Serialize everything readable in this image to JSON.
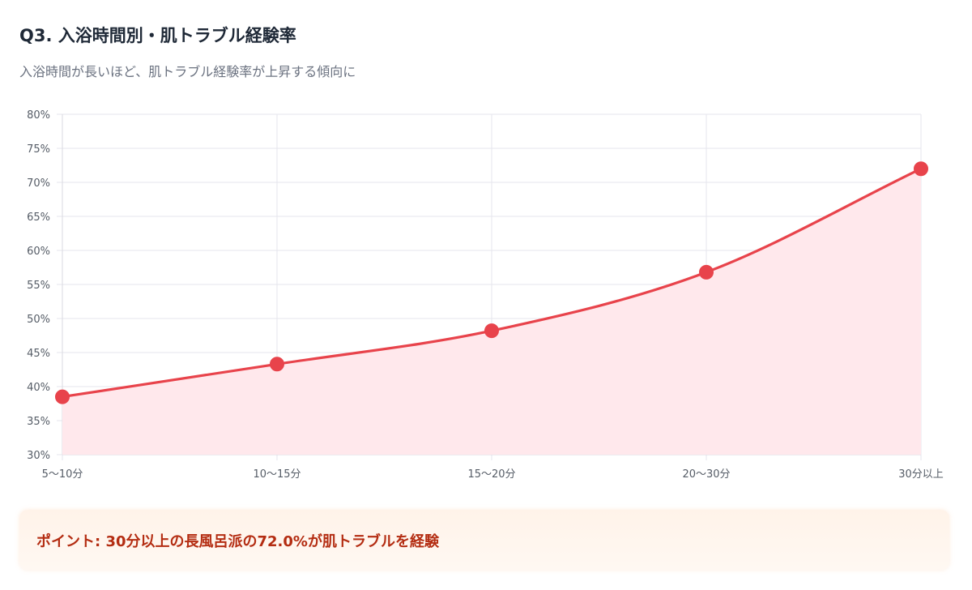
{
  "header": {
    "title": "Q3. 入浴時間別・肌トラブル経験率",
    "subtitle": "入浴時間が長いほど、肌トラブル経験率が上昇する傾向に"
  },
  "chart_data": {
    "type": "line",
    "title": "Q3. 入浴時間別・肌トラブル経験率",
    "subtitle": "入浴時間が長いほど、肌トラブル経験率が上昇する傾向に",
    "categories": [
      "5〜10分",
      "10〜15分",
      "15〜20分",
      "20〜30分",
      "30分以上"
    ],
    "values": [
      38.5,
      43.3,
      48.2,
      56.8,
      72.0
    ],
    "ylim": [
      30,
      80
    ],
    "yticks": [
      "30%",
      "35%",
      "40%",
      "45%",
      "50%",
      "55%",
      "60%",
      "65%",
      "70%",
      "75%",
      "80%"
    ],
    "fill_area": true,
    "smooth": true,
    "grid": true,
    "legend": "none",
    "xlabel": "",
    "ylabel": "",
    "line_color": "#e8434b",
    "fill_color": "#ffe8ec"
  },
  "callout": {
    "text": "ポイント: 30分以上の長風呂派の72.0%が肌トラブルを経験"
  }
}
